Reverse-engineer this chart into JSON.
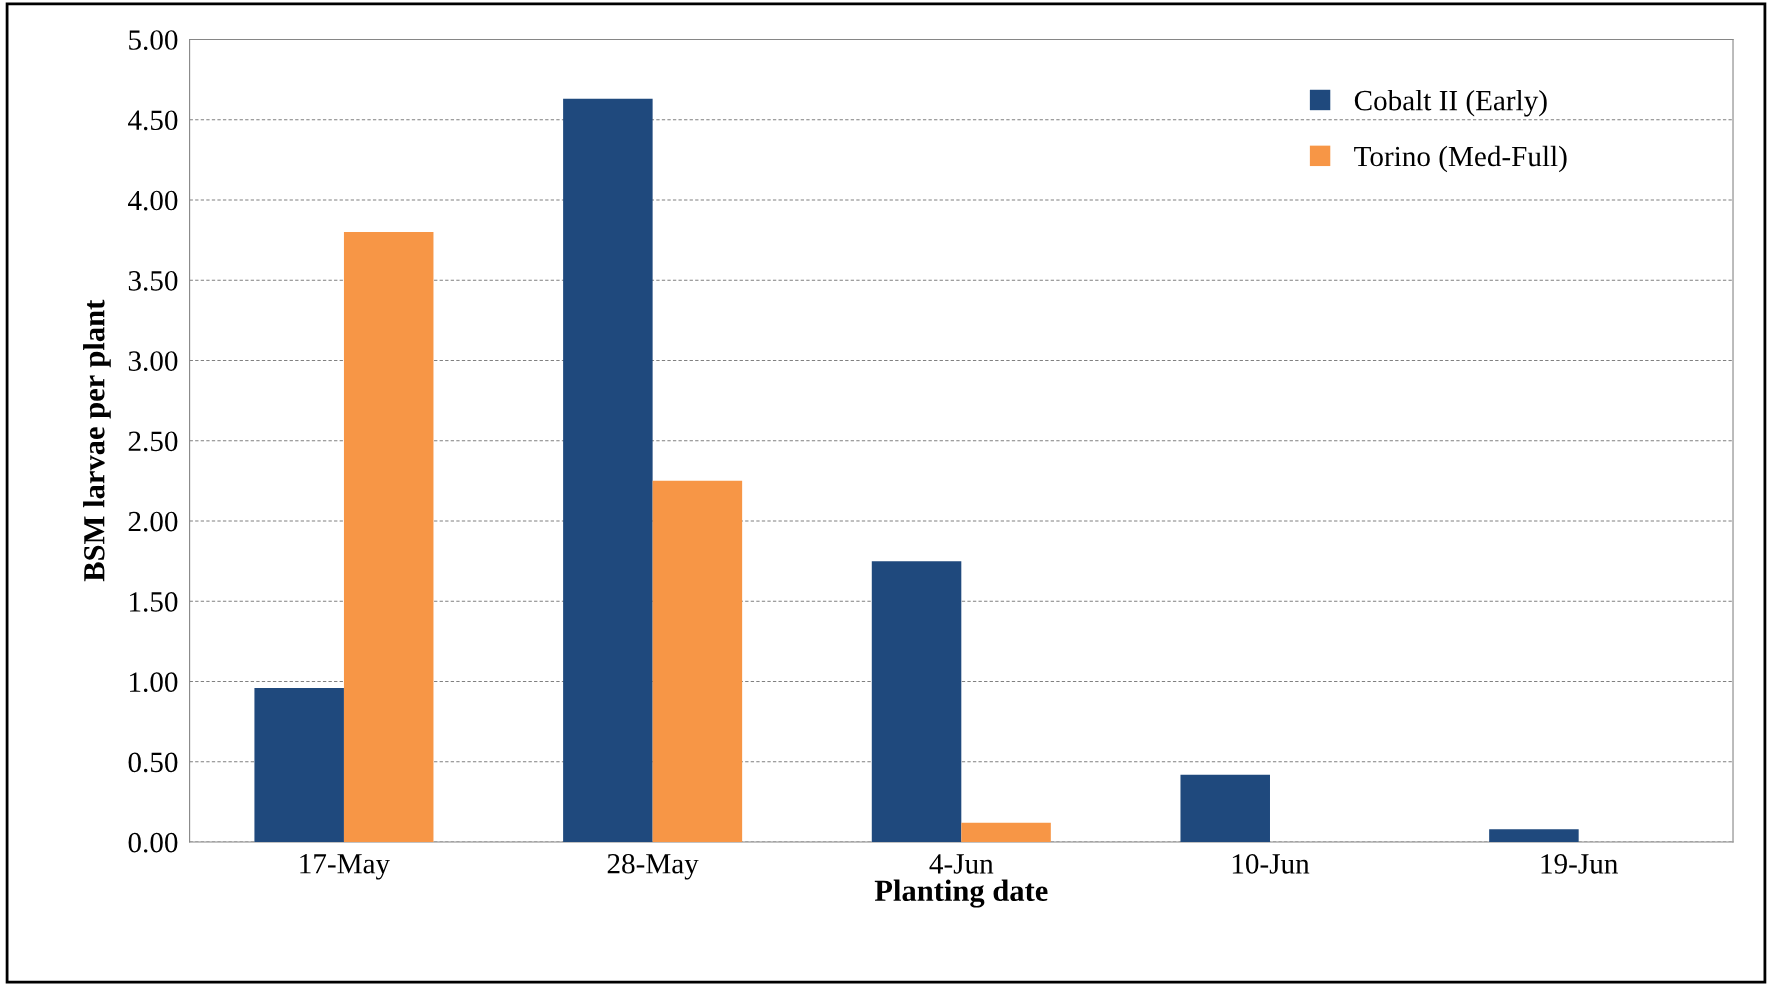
{
  "chart_data": {
    "type": "bar",
    "xlabel": "Planting date",
    "ylabel": "BSM larvae per plant",
    "categories": [
      "17-May",
      "28-May",
      "4-Jun",
      "10-Jun",
      "19-Jun"
    ],
    "series": [
      {
        "name": "Cobalt II (Early)",
        "color": "#1f497d",
        "values": [
          0.96,
          4.63,
          1.75,
          0.42,
          0.08
        ]
      },
      {
        "name": "Torino (Med-Full)",
        "color": "#f79646",
        "values": [
          3.8,
          2.25,
          0.12,
          0,
          0
        ]
      }
    ],
    "ylim": [
      0,
      5
    ],
    "yticks": [
      {
        "value": 0,
        "label": "0.00"
      },
      {
        "value": 0.5,
        "label": "0.50"
      },
      {
        "value": 1,
        "label": "1.00"
      },
      {
        "value": 1.5,
        "label": "1.50"
      },
      {
        "value": 2,
        "label": "2.00"
      },
      {
        "value": 2.5,
        "label": "2.50"
      },
      {
        "value": 3,
        "label": "3.00"
      },
      {
        "value": 3.5,
        "label": "3.50"
      },
      {
        "value": 4,
        "label": "4.00"
      },
      {
        "value": 4.5,
        "label": "4.50"
      },
      {
        "value": 5,
        "label": "5.00"
      }
    ],
    "grid": "y",
    "legend": "top right"
  }
}
